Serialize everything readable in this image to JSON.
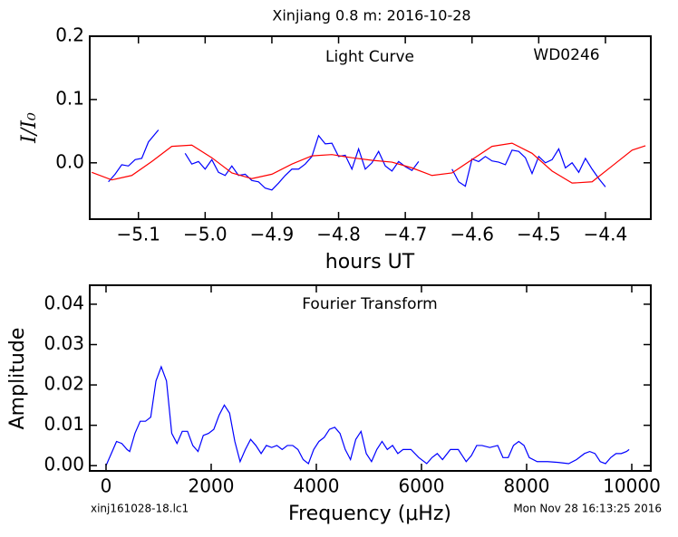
{
  "chart_data": [
    {
      "type": "line",
      "title": "Xinjiang 0.8 m:  2016-10-28",
      "annotations": [
        "Light Curve",
        "WD0246"
      ],
      "x_label": "hours UT",
      "y_label": "I/I₀",
      "xlim": [
        -5.173,
        -4.332
      ],
      "ylim": [
        -0.089,
        0.2
      ],
      "xticks": [
        {
          "value": -5.1,
          "label": "−5.1"
        },
        {
          "value": -5.0,
          "label": "−5.0"
        },
        {
          "value": -4.9,
          "label": "−4.9"
        },
        {
          "value": -4.8,
          "label": "−4.8"
        },
        {
          "value": -4.7,
          "label": "−4.7"
        },
        {
          "value": -4.6,
          "label": "−4.6"
        },
        {
          "value": -4.5,
          "label": "−4.5"
        },
        {
          "value": -4.4,
          "label": "−4.4"
        }
      ],
      "yticks": [
        {
          "value": 0,
          "label": "0.0"
        },
        0.1,
        0.2
      ],
      "series": [
        {
          "color": "#0000ff",
          "x": [
            -5.145,
            -5.135,
            -5.125,
            -5.115,
            -5.105,
            -5.095,
            -5.085,
            -5.07,
            -5.05,
            -5.03,
            -5.02,
            -5.01,
            -5.0,
            -4.99,
            -4.98,
            -4.97,
            -4.96,
            -4.95,
            -4.94,
            -4.93,
            -4.92,
            -4.91,
            -4.9,
            -4.89,
            -4.88,
            -4.87,
            -4.86,
            -4.85,
            -4.84,
            -4.83,
            -4.82,
            -4.81,
            -4.8,
            -4.79,
            -4.78,
            -4.77,
            -4.76,
            -4.75,
            -4.74,
            -4.73,
            -4.72,
            -4.71,
            -4.7,
            -4.69,
            -4.68,
            -4.655,
            -4.63,
            -4.62,
            -4.61,
            -4.6,
            -4.59,
            -4.58,
            -4.57,
            -4.56,
            -4.55,
            -4.54,
            -4.53,
            -4.52,
            -4.51,
            -4.5,
            -4.49,
            -4.48,
            -4.47,
            -4.46,
            -4.45,
            -4.44,
            -4.43,
            -4.42,
            -4.41,
            -4.4
          ],
          "values": [
            -0.03,
            -0.018,
            -0.003,
            -0.005,
            0.005,
            0.007,
            0.033,
            0.052,
            null,
            0.015,
            -0.002,
            0.002,
            -0.01,
            0.005,
            -0.015,
            -0.02,
            -0.005,
            -0.02,
            -0.018,
            -0.028,
            -0.03,
            -0.04,
            -0.043,
            -0.032,
            -0.02,
            -0.01,
            -0.01,
            -0.002,
            0.01,
            0.043,
            0.03,
            0.031,
            0.01,
            0.012,
            -0.01,
            0.022,
            -0.01,
            0.0,
            0.018,
            -0.005,
            -0.013,
            0.002,
            -0.006,
            -0.012,
            0.002,
            null,
            -0.01,
            -0.03,
            -0.037,
            0.006,
            0.002,
            0.01,
            0.003,
            0.001,
            -0.003,
            0.02,
            0.018,
            0.008,
            -0.017,
            0.01,
            0.0,
            0.005,
            0.022,
            -0.008,
            0.0,
            -0.015,
            0.007,
            -0.01,
            -0.025,
            -0.038
          ]
        },
        {
          "color": "#ff0000",
          "x": [
            -5.17,
            -5.14,
            -5.11,
            -5.08,
            -5.05,
            -5.02,
            -4.99,
            -4.96,
            -4.93,
            -4.9,
            -4.87,
            -4.84,
            -4.81,
            -4.78,
            -4.75,
            -4.72,
            -4.69,
            -4.66,
            -4.63,
            -4.6,
            -4.57,
            -4.54,
            -4.51,
            -4.48,
            -4.45,
            -4.42,
            -4.39,
            -4.36,
            -4.34
          ],
          "values": [
            -0.015,
            -0.027,
            -0.02,
            0.002,
            0.026,
            0.028,
            0.008,
            -0.016,
            -0.025,
            -0.018,
            -0.002,
            0.011,
            0.013,
            0.008,
            0.004,
            0.001,
            -0.008,
            -0.02,
            -0.016,
            0.005,
            0.026,
            0.031,
            0.015,
            -0.013,
            -0.032,
            -0.03,
            -0.005,
            0.02,
            0.027
          ]
        }
      ]
    },
    {
      "type": "line",
      "annotations": [
        "Fourier Transform"
      ],
      "x_label": "Frequency (μHz)",
      "y_label": "Amplitude",
      "xlim": [
        -310,
        10362
      ],
      "ylim": [
        -0.0013,
        0.0447
      ],
      "xticks": [
        0,
        2000,
        4000,
        6000,
        8000,
        10000
      ],
      "yticks": [
        {
          "value": 0,
          "label": "0.00"
        },
        0.01,
        0.02,
        0.03,
        0.04
      ],
      "series": [
        {
          "color": "#0000ff",
          "x": [
            0,
            100,
            200,
            300,
            400,
            450,
            550,
            650,
            750,
            850,
            950,
            1050,
            1150,
            1250,
            1350,
            1450,
            1550,
            1650,
            1750,
            1850,
            1950,
            2050,
            2150,
            2250,
            2350,
            2450,
            2550,
            2650,
            2750,
            2850,
            2950,
            3050,
            3150,
            3250,
            3350,
            3450,
            3550,
            3650,
            3750,
            3850,
            3950,
            4050,
            4150,
            4250,
            4350,
            4450,
            4550,
            4650,
            4750,
            4850,
            4950,
            5050,
            5150,
            5250,
            5350,
            5450,
            5550,
            5650,
            5800,
            5950,
            6100,
            6200,
            6300,
            6400,
            6550,
            6700,
            6850,
            6950,
            7050,
            7150,
            7300,
            7450,
            7550,
            7650,
            7750,
            7850,
            7950,
            8050,
            8200,
            8400,
            8600,
            8800,
            8950,
            9100,
            9200,
            9300,
            9400,
            9500,
            9600,
            9700,
            9800,
            9900,
            9950
          ],
          "values": [
            0.0,
            0.003,
            0.006,
            0.0055,
            0.004,
            0.0035,
            0.008,
            0.011,
            0.011,
            0.012,
            0.021,
            0.0245,
            0.021,
            0.008,
            0.0055,
            0.0085,
            0.0085,
            0.005,
            0.0035,
            0.0075,
            0.008,
            0.009,
            0.0125,
            0.015,
            0.013,
            0.006,
            0.001,
            0.004,
            0.0065,
            0.005,
            0.003,
            0.005,
            0.0045,
            0.005,
            0.004,
            0.005,
            0.005,
            0.004,
            0.0015,
            0.0005,
            0.004,
            0.006,
            0.007,
            0.009,
            0.0095,
            0.008,
            0.004,
            0.0015,
            0.0065,
            0.0085,
            0.003,
            0.001,
            0.004,
            0.006,
            0.004,
            0.005,
            0.003,
            0.004,
            0.004,
            0.002,
            0.0005,
            0.002,
            0.003,
            0.0015,
            0.004,
            0.004,
            0.001,
            0.0025,
            0.005,
            0.005,
            0.0045,
            0.005,
            0.002,
            0.002,
            0.005,
            0.006,
            0.005,
            0.002,
            0.001,
            0.001,
            0.0008,
            0.0005,
            0.0015,
            0.003,
            0.0035,
            0.003,
            0.001,
            0.0005,
            0.002,
            0.003,
            0.003,
            0.0035,
            0.004
          ]
        }
      ]
    }
  ],
  "footer": {
    "left": "xinj161028-18.lc1",
    "right": "Mon Nov 28 16:13:25 2016"
  }
}
